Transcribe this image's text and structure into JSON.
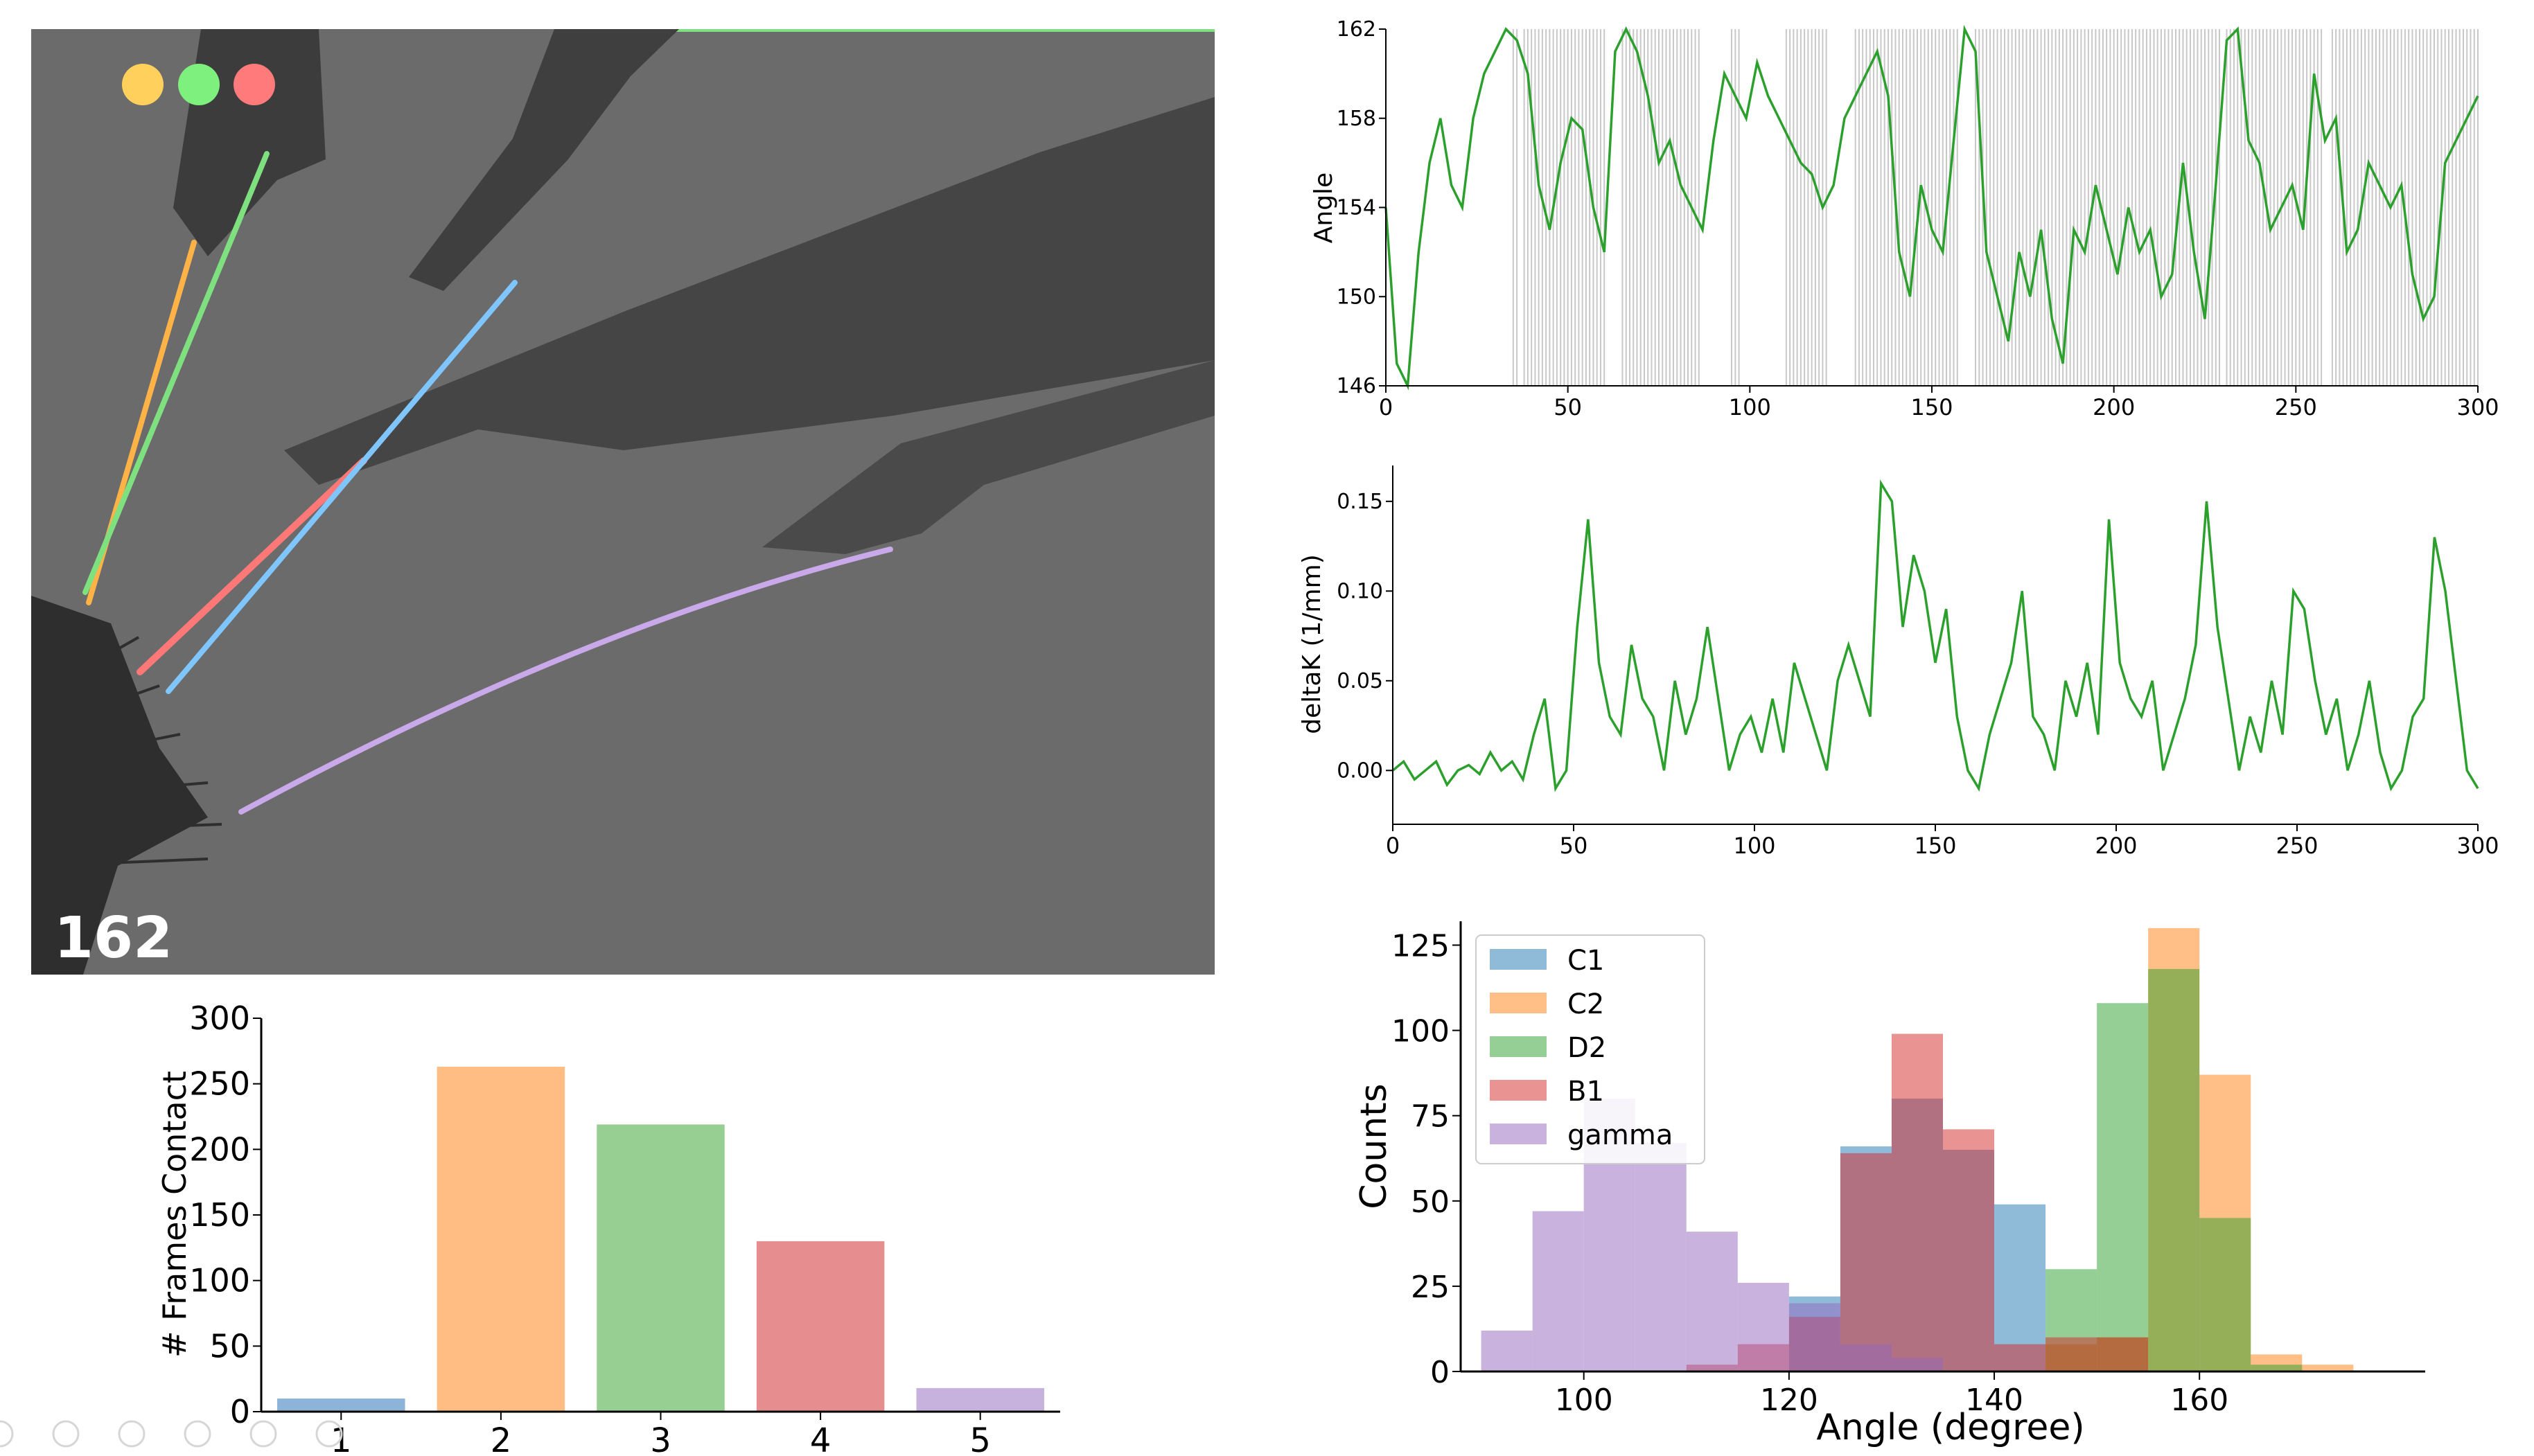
{
  "video_panel": {
    "frame_number": "162",
    "indicator_colors": [
      "#ffd15c",
      "#7df07d",
      "#ff7b7b"
    ],
    "whisker_colors": {
      "C1": "#7fc6ff",
      "C2": "#ffb347",
      "D2": "#7ee07e",
      "B1": "#ff7878",
      "gamma": "#c9a9ea"
    }
  },
  "chart_data": [
    {
      "id": "angle_trace",
      "type": "line",
      "title": "",
      "xlabel": "",
      "ylabel": "Angle",
      "xlim": [
        0,
        300
      ],
      "ylim": [
        146,
        162
      ],
      "xticks": [
        0,
        50,
        100,
        150,
        200,
        250,
        300
      ],
      "yticks": [
        146,
        150,
        154,
        158,
        162
      ],
      "color": "#2ca02c",
      "contact_bands": [
        [
          35,
          36
        ],
        [
          38,
          60
        ],
        [
          65,
          86
        ],
        [
          95,
          97
        ],
        [
          110,
          121
        ],
        [
          129,
          157
        ],
        [
          162,
          229
        ],
        [
          231,
          257
        ],
        [
          260,
          300
        ]
      ],
      "x": [
        0,
        3,
        6,
        9,
        12,
        15,
        18,
        21,
        24,
        27,
        30,
        33,
        36,
        39,
        42,
        45,
        48,
        51,
        54,
        57,
        60,
        63,
        66,
        69,
        72,
        75,
        78,
        81,
        84,
        87,
        90,
        93,
        96,
        99,
        102,
        105,
        108,
        111,
        114,
        117,
        120,
        123,
        126,
        129,
        132,
        135,
        138,
        141,
        144,
        147,
        150,
        153,
        156,
        159,
        162,
        165,
        168,
        171,
        174,
        177,
        180,
        183,
        186,
        189,
        192,
        195,
        198,
        201,
        204,
        207,
        210,
        213,
        216,
        219,
        222,
        225,
        228,
        231,
        234,
        237,
        240,
        243,
        246,
        249,
        252,
        255,
        258,
        261,
        264,
        267,
        270,
        273,
        276,
        279,
        282,
        285,
        288,
        291,
        294,
        297,
        300
      ],
      "y": [
        154,
        147,
        146,
        152,
        156,
        158,
        155,
        154,
        158,
        160,
        161,
        162,
        161.5,
        160,
        155,
        153,
        156,
        158,
        157.5,
        154,
        152,
        161,
        162,
        161,
        159,
        156,
        157,
        155,
        154,
        153,
        157,
        160,
        159,
        158,
        160.5,
        159,
        158,
        157,
        156,
        155.5,
        154,
        155,
        158,
        159,
        160,
        161,
        159,
        152,
        150,
        155,
        153,
        152,
        157,
        162,
        161,
        152,
        150,
        148,
        152,
        150,
        153,
        149,
        147,
        153,
        152,
        155,
        153,
        151,
        154,
        152,
        153,
        150,
        151,
        156,
        152,
        149,
        155,
        161.5,
        162,
        157,
        156,
        153,
        154,
        155,
        153,
        160,
        157,
        158,
        152,
        153,
        156,
        155,
        154,
        155,
        151,
        149,
        150,
        156,
        157,
        158,
        159
      ]
    },
    {
      "id": "deltak_trace",
      "type": "line",
      "title": "",
      "xlabel": "",
      "ylabel": "deltaK (1/mm)",
      "xlim": [
        0,
        300
      ],
      "ylim": [
        -0.03,
        0.17
      ],
      "xticks": [
        0,
        50,
        100,
        150,
        200,
        250,
        300
      ],
      "yticks": [
        0.0,
        0.05,
        0.1,
        0.15
      ],
      "ytick_labels": [
        "0.00",
        "0.05",
        "0.10",
        "0.15"
      ],
      "color": "#2ca02c",
      "x": [
        0,
        3,
        6,
        9,
        12,
        15,
        18,
        21,
        24,
        27,
        30,
        33,
        36,
        39,
        42,
        45,
        48,
        51,
        54,
        57,
        60,
        63,
        66,
        69,
        72,
        75,
        78,
        81,
        84,
        87,
        90,
        93,
        96,
        99,
        102,
        105,
        108,
        111,
        114,
        117,
        120,
        123,
        126,
        129,
        132,
        135,
        138,
        141,
        144,
        147,
        150,
        153,
        156,
        159,
        162,
        165,
        168,
        171,
        174,
        177,
        180,
        183,
        186,
        189,
        192,
        195,
        198,
        201,
        204,
        207,
        210,
        213,
        216,
        219,
        222,
        225,
        228,
        231,
        234,
        237,
        240,
        243,
        246,
        249,
        252,
        255,
        258,
        261,
        264,
        267,
        270,
        273,
        276,
        279,
        282,
        285,
        288,
        291,
        294,
        297,
        300
      ],
      "y": [
        0.0,
        0.005,
        -0.005,
        0.0,
        0.005,
        -0.008,
        0.0,
        0.003,
        -0.002,
        0.01,
        0.0,
        0.005,
        -0.005,
        0.02,
        0.04,
        -0.01,
        0.0,
        0.08,
        0.14,
        0.06,
        0.03,
        0.02,
        0.07,
        0.04,
        0.03,
        0.0,
        0.05,
        0.02,
        0.04,
        0.08,
        0.04,
        0.0,
        0.02,
        0.03,
        0.01,
        0.04,
        0.01,
        0.06,
        0.04,
        0.02,
        0.0,
        0.05,
        0.07,
        0.05,
        0.03,
        0.16,
        0.15,
        0.08,
        0.12,
        0.1,
        0.06,
        0.09,
        0.03,
        0.0,
        -0.01,
        0.02,
        0.04,
        0.06,
        0.1,
        0.03,
        0.02,
        0.0,
        0.05,
        0.03,
        0.06,
        0.02,
        0.14,
        0.06,
        0.04,
        0.03,
        0.05,
        0.0,
        0.02,
        0.04,
        0.07,
        0.15,
        0.08,
        0.04,
        0.0,
        0.03,
        0.01,
        0.05,
        0.02,
        0.1,
        0.09,
        0.05,
        0.02,
        0.04,
        0.0,
        0.02,
        0.05,
        0.01,
        -0.01,
        0.0,
        0.03,
        0.04,
        0.13,
        0.1,
        0.05,
        0.0,
        -0.01
      ]
    },
    {
      "id": "frames_contact_bar",
      "type": "bar",
      "title": "",
      "xlabel": "",
      "ylabel": "# Frames Contact",
      "categories": [
        "1",
        "2",
        "3",
        "4",
        "5"
      ],
      "values": [
        10,
        263,
        219,
        130,
        18
      ],
      "colors": [
        "#8db4d8",
        "#ffbd84",
        "#97cf93",
        "#e68e8f",
        "#c6b2dd"
      ],
      "ylim": [
        0,
        300
      ],
      "yticks": [
        0,
        50,
        100,
        150,
        200,
        250,
        300
      ]
    },
    {
      "id": "angle_histogram",
      "type": "bar",
      "title": "",
      "xlabel": "Angle (degree)",
      "ylabel": "Counts",
      "xlim": [
        88,
        182
      ],
      "ylim": [
        0,
        132
      ],
      "xticks": [
        100,
        120,
        140,
        160
      ],
      "yticks": [
        0,
        25,
        50,
        75,
        100,
        125
      ],
      "bin_edges": [
        90,
        95,
        100,
        105,
        110,
        115,
        120,
        125,
        130,
        135,
        140,
        145,
        150,
        155,
        160,
        165,
        170,
        175
      ],
      "legend_position": "upper-left",
      "series": [
        {
          "name": "C1",
          "color": "#1f77b4",
          "values": [
            0,
            0,
            0,
            0,
            0,
            0,
            22,
            66,
            80,
            65,
            49,
            0,
            0,
            0,
            0,
            0,
            0
          ]
        },
        {
          "name": "C2",
          "color": "#ff7f0e",
          "values": [
            0,
            0,
            0,
            0,
            0,
            0,
            0,
            0,
            0,
            0,
            0,
            8,
            10,
            130,
            87,
            5,
            2
          ]
        },
        {
          "name": "D2",
          "color": "#2ca02c",
          "values": [
            0,
            0,
            0,
            0,
            0,
            0,
            0,
            0,
            0,
            0,
            0,
            30,
            108,
            118,
            45,
            2,
            0
          ]
        },
        {
          "name": "B1",
          "color": "#d62728",
          "values": [
            0,
            0,
            0,
            0,
            2,
            8,
            16,
            64,
            99,
            71,
            8,
            10,
            10,
            0,
            0,
            0,
            0
          ]
        },
        {
          "name": "gamma",
          "color": "#9467bd",
          "values": [
            12,
            47,
            80,
            67,
            41,
            26,
            20,
            8,
            4,
            0,
            0,
            0,
            0,
            0,
            0,
            0,
            0
          ]
        }
      ]
    }
  ]
}
